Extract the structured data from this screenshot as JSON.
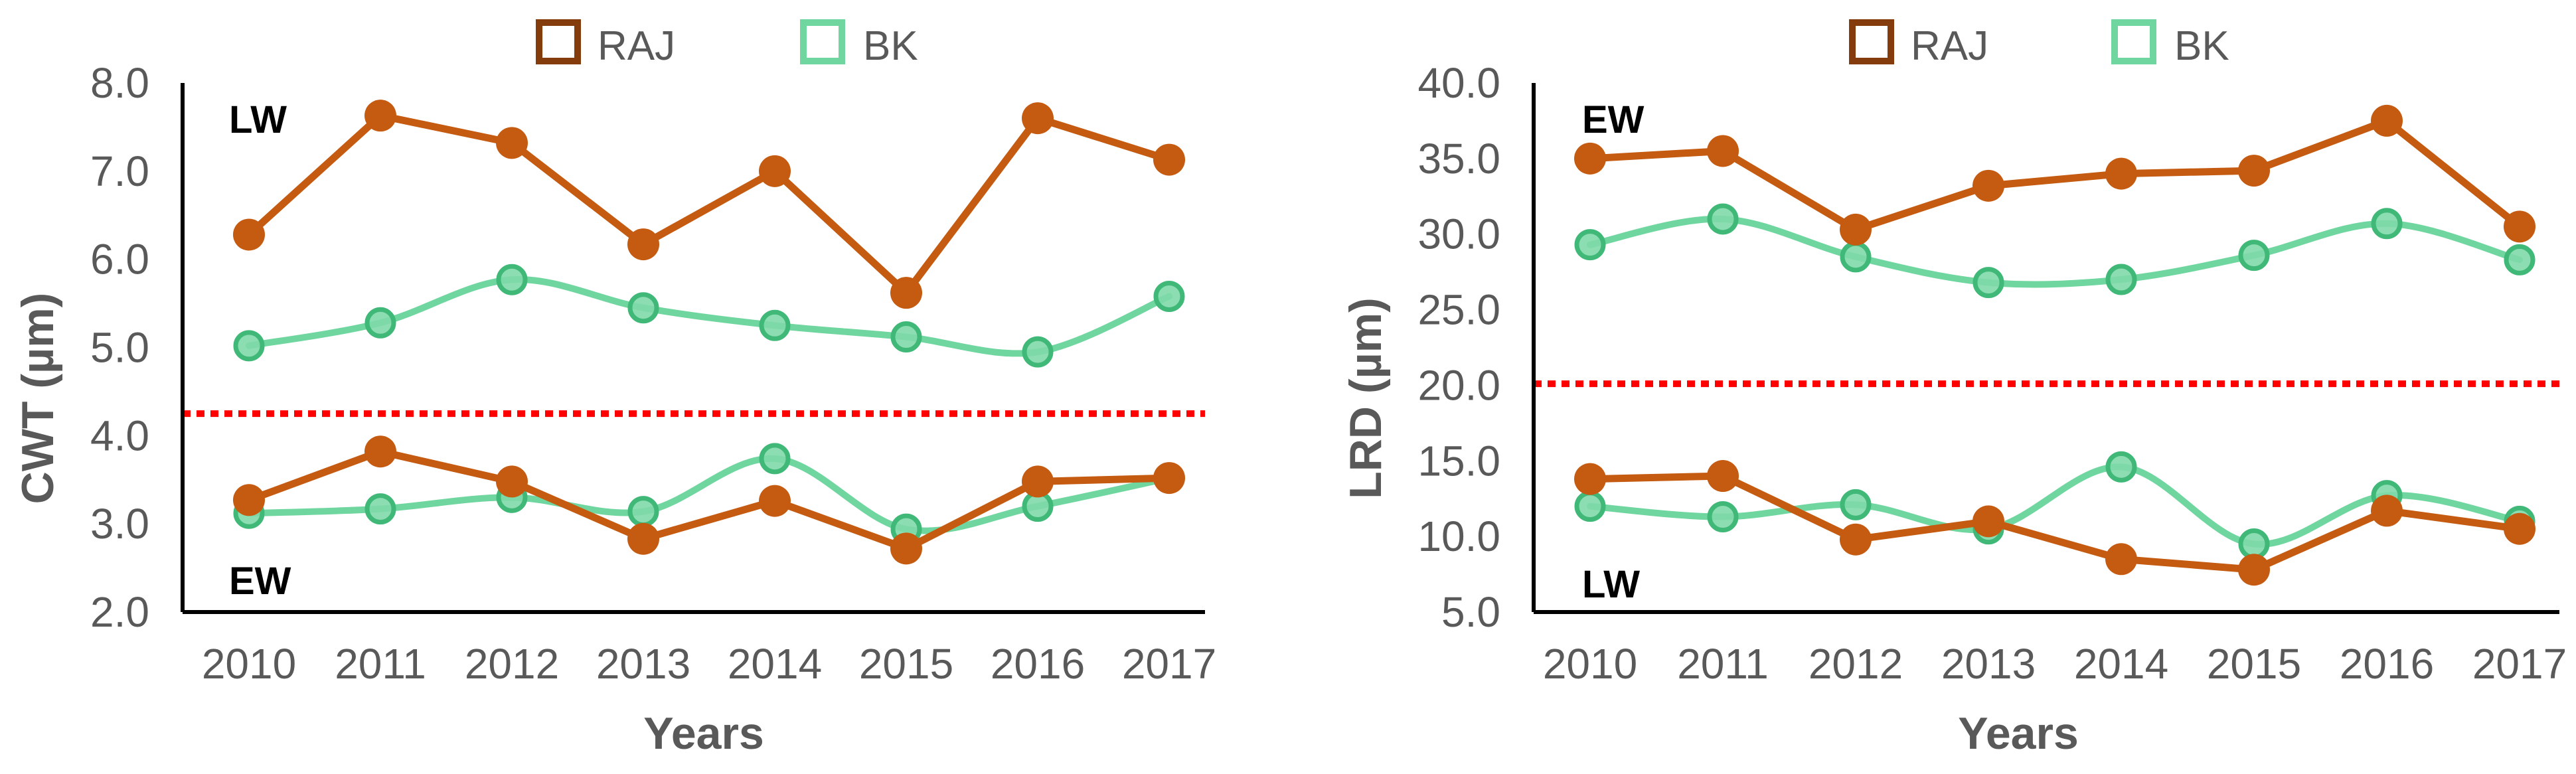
{
  "colors": {
    "raj_line": "#C55A11",
    "raj_marker": "#C55A11",
    "raj_legend": "#843C0C",
    "bk_line": "#70D6A0",
    "bk_marker_fill": "#7FD9A8",
    "bk_marker_edge": "#3FB878",
    "threshold": "#FF0000",
    "axis": "#000000",
    "text": "#595959"
  },
  "chart_data": [
    {
      "type": "line",
      "title": "",
      "xlabel": "Years",
      "ylabel": "CWT (µm)",
      "categories": [
        "2010",
        "2011",
        "2012",
        "2013",
        "2014",
        "2015",
        "2016",
        "2017"
      ],
      "ylim": [
        2.0,
        8.0
      ],
      "yticks": [
        "2.0",
        "3.0",
        "4.0",
        "5.0",
        "6.0",
        "7.0",
        "8.0"
      ],
      "threshold": 4.25,
      "legend": [
        "RAJ",
        "BK"
      ],
      "legend_position": "top-center",
      "region_top_label": "LW",
      "region_bottom_label": "EW",
      "series": [
        {
          "name": "RAJ",
          "group": "LW",
          "values": [
            6.28,
            7.63,
            7.32,
            6.17,
            7.0,
            5.62,
            7.6,
            7.13
          ]
        },
        {
          "name": "BK",
          "group": "LW",
          "values": [
            5.02,
            5.28,
            5.77,
            5.45,
            5.25,
            5.12,
            4.95,
            5.58
          ]
        },
        {
          "name": "RAJ",
          "group": "EW",
          "values": [
            3.27,
            3.82,
            3.48,
            2.83,
            3.26,
            2.72,
            3.48,
            3.52
          ]
        },
        {
          "name": "BK",
          "group": "EW",
          "values": [
            3.12,
            3.17,
            3.3,
            3.14,
            3.74,
            2.94,
            3.2,
            3.52
          ]
        }
      ]
    },
    {
      "type": "line",
      "title": "",
      "xlabel": "Years",
      "ylabel": "LRD (µm)",
      "categories": [
        "2010",
        "2011",
        "2012",
        "2013",
        "2014",
        "2015",
        "2016",
        "2017"
      ],
      "ylim": [
        5.0,
        40.0
      ],
      "yticks": [
        "5.0",
        "10.0",
        "15.0",
        "20.0",
        "25.0",
        "30.0",
        "35.0",
        "40.0"
      ],
      "threshold": 20.1,
      "legend": [
        "RAJ",
        "BK"
      ],
      "legend_position": "top-center",
      "region_top_label": "EW",
      "region_bottom_label": "LW",
      "series": [
        {
          "name": "RAJ",
          "group": "EW",
          "values": [
            35.0,
            35.5,
            30.3,
            33.2,
            34.0,
            34.2,
            37.5,
            30.5
          ]
        },
        {
          "name": "BK",
          "group": "EW",
          "values": [
            29.3,
            31.0,
            28.5,
            26.8,
            27.0,
            28.6,
            30.7,
            28.3
          ]
        },
        {
          "name": "RAJ",
          "group": "LW",
          "values": [
            13.8,
            14.0,
            9.8,
            11.0,
            8.5,
            7.8,
            11.7,
            10.5
          ]
        },
        {
          "name": "BK",
          "group": "LW",
          "values": [
            12.0,
            11.3,
            12.1,
            10.5,
            14.6,
            9.5,
            12.7,
            11.0
          ]
        }
      ]
    }
  ]
}
